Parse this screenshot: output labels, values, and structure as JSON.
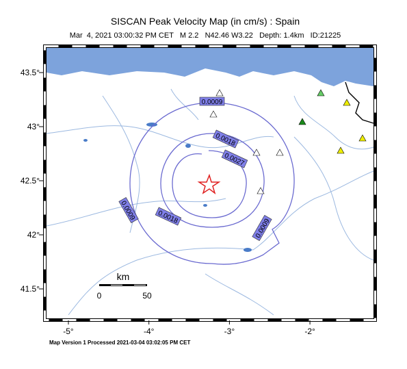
{
  "header": {
    "title": "SISCAN Peak Velocity Map (in cm/s) : Spain",
    "subtitle": "Mar  4, 2021 03:00:32 PM CET   M 2.2   N42.46 W3.22   Depth: 1.4km   ID:21225"
  },
  "x_axis": {
    "ticks": [
      {
        "value": -5,
        "label": "-5°"
      },
      {
        "value": -4,
        "label": "-4°"
      },
      {
        "value": -3,
        "label": "-3°"
      },
      {
        "value": -2,
        "label": "-2°"
      }
    ]
  },
  "y_axis": {
    "ticks": [
      {
        "value": 41.5,
        "label": "41.5°"
      },
      {
        "value": 42,
        "label": "42°"
      },
      {
        "value": 42.5,
        "label": "42.5°"
      },
      {
        "value": 43,
        "label": "43°"
      },
      {
        "value": 43.5,
        "label": "43.5°"
      }
    ]
  },
  "contour_levels": [
    0.0009,
    0.0018,
    0.0027
  ],
  "scale_bar": {
    "unit": "km",
    "start": "0",
    "end": "50"
  },
  "footer": "Map Version 1 Processed 2021-03-04 03:02:05 PM CET"
}
